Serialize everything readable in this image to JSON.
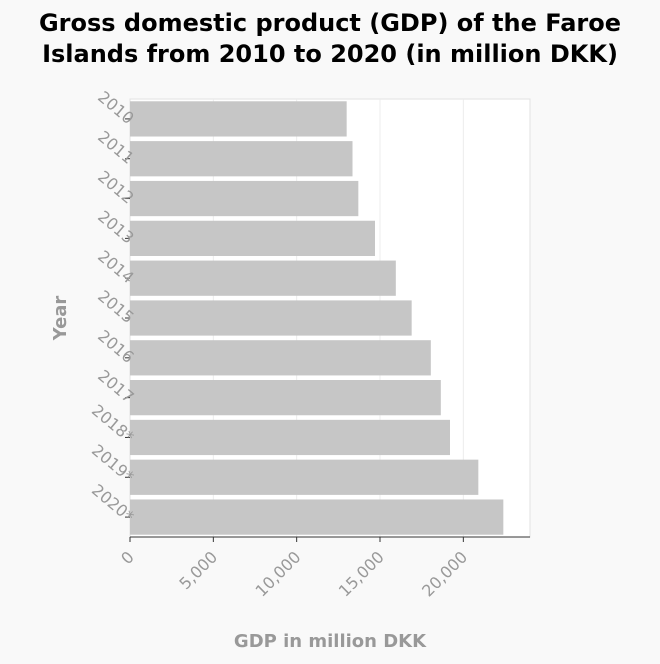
{
  "chart_data": {
    "type": "bar",
    "orientation": "horizontal",
    "title_lines": [
      "Gross domestic product (GDP) of the Faroe",
      "Islands from 2010 to 2020 (in million DKK)"
    ],
    "xlabel": "GDP in million DKK",
    "ylabel": "Year",
    "categories": [
      "2010",
      "2011",
      "2012",
      "2013",
      "2014",
      "2015",
      "2016",
      "2017",
      "2018*",
      "2019*",
      "2020*"
    ],
    "values": [
      13000,
      13350,
      13700,
      14700,
      15950,
      16900,
      18050,
      18650,
      19200,
      20900,
      22400
    ],
    "xlim": [
      0,
      24000
    ],
    "xticks": [
      0,
      5000,
      10000,
      15000,
      20000
    ],
    "xtick_labels": [
      "0",
      "5,000",
      "10,000",
      "15,000",
      "20,000"
    ],
    "bar_color": "#c6c6c6",
    "grid": "vertical"
  }
}
